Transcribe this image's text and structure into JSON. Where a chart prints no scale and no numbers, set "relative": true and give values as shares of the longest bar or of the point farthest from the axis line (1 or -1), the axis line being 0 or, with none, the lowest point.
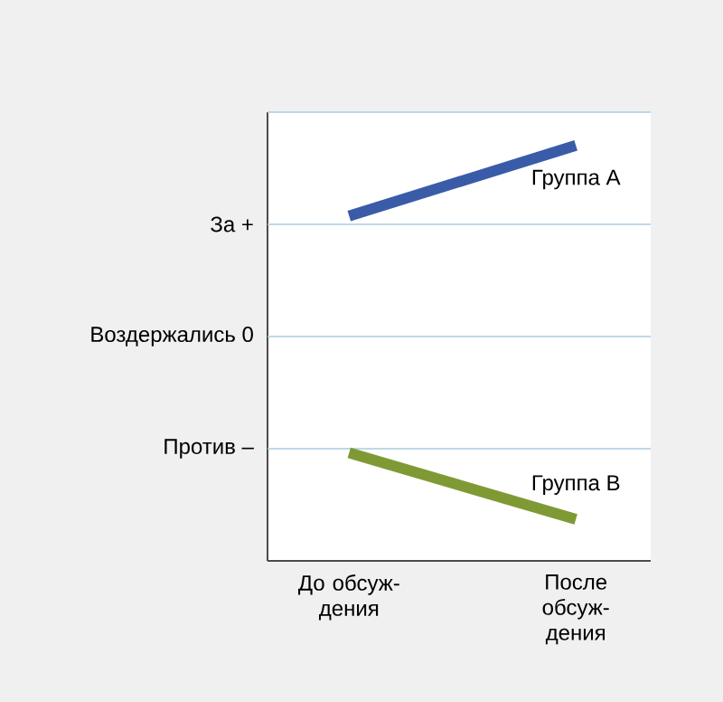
{
  "chart_data": {
    "type": "line",
    "relative": true,
    "categories": [
      "До обсуж-дения",
      "После обсуж-дения"
    ],
    "series": [
      {
        "name": "Группа A",
        "color": "#3a5ca8",
        "values": [
          0.83,
          1.0
        ]
      },
      {
        "name": "Группа B",
        "color": "#7f9a35",
        "values": [
          0.26,
          0.1
        ]
      }
    ],
    "ref_lines": [
      {
        "axis": "y",
        "value": 0.27,
        "label": "Против –",
        "color": "#a9cce3"
      },
      {
        "axis": "y",
        "value": 0.54,
        "label": "Воздержались 0",
        "color": "#a9cce3"
      },
      {
        "axis": "y",
        "value": 0.81,
        "label": "За +",
        "color": "#a9cce3"
      },
      {
        "axis": "y",
        "value": 1.08,
        "color": "#a9cce3"
      }
    ],
    "legend": false,
    "marker": "none",
    "line_style": "solid"
  }
}
